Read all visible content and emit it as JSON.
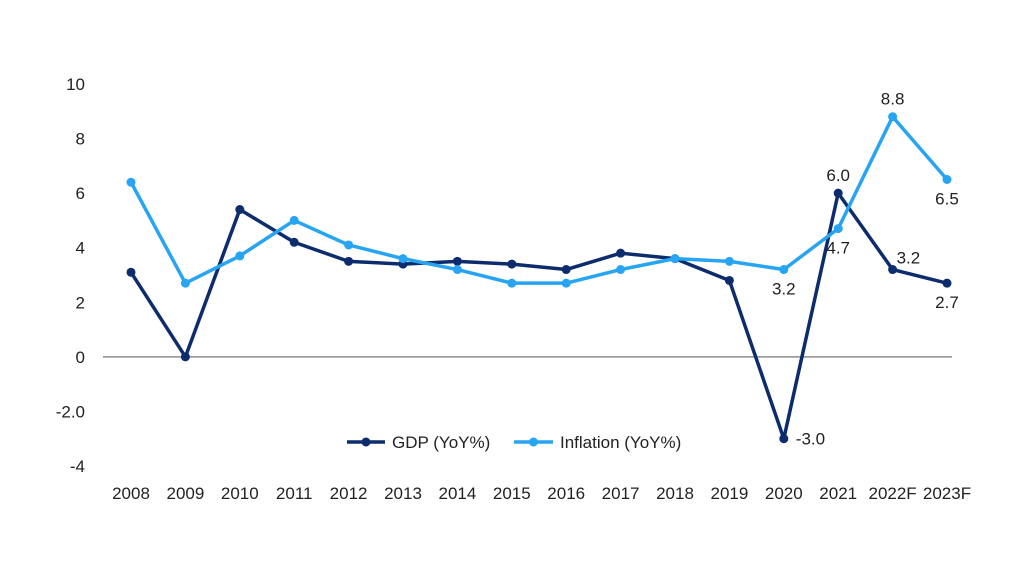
{
  "chart_data": {
    "type": "line",
    "title": "",
    "xlabel": "",
    "ylabel": "",
    "categories": [
      "2008",
      "2009",
      "2010",
      "2011",
      "2012",
      "2013",
      "2014",
      "2015",
      "2016",
      "2017",
      "2018",
      "2019",
      "2020",
      "2021",
      "2022F",
      "2023F"
    ],
    "ylim": [
      -4,
      10
    ],
    "yticks": [
      -4,
      -2,
      0,
      2,
      4,
      6,
      8,
      10
    ],
    "ytick_labels": [
      "-4",
      "-2.0",
      "0",
      "2",
      "4",
      "6",
      "8",
      "10"
    ],
    "grid": false,
    "zero_line": true,
    "legend_position": "bottom-center",
    "series": [
      {
        "name": "GDP (YoY%)",
        "color": "#0d2c6e",
        "values": [
          3.1,
          0.0,
          5.4,
          4.2,
          3.5,
          3.4,
          3.5,
          3.4,
          3.2,
          3.8,
          3.6,
          2.8,
          -3.0,
          6.0,
          3.2,
          2.7
        ]
      },
      {
        "name": "Inflation (YoY%)",
        "color": "#27a4f2",
        "values": [
          6.4,
          2.7,
          3.7,
          5.0,
          4.1,
          3.6,
          3.2,
          2.7,
          2.7,
          3.2,
          3.6,
          3.5,
          3.2,
          4.7,
          8.8,
          6.5
        ]
      }
    ],
    "annotations": [
      {
        "series": 0,
        "category": "2020",
        "text": "-3.0",
        "position": "right"
      },
      {
        "series": 0,
        "category": "2021",
        "text": "6.0",
        "position": "above"
      },
      {
        "series": 0,
        "category": "2022F",
        "text": "3.2",
        "position": "above-right"
      },
      {
        "series": 0,
        "category": "2023F",
        "text": "2.7",
        "position": "below"
      },
      {
        "series": 1,
        "category": "2020",
        "text": "3.2",
        "position": "below"
      },
      {
        "series": 1,
        "category": "2021",
        "text": "4.7",
        "position": "below"
      },
      {
        "series": 1,
        "category": "2022F",
        "text": "8.8",
        "position": "above"
      },
      {
        "series": 1,
        "category": "2023F",
        "text": "6.5",
        "position": "below"
      }
    ],
    "axis_color": "#8c8c8c"
  }
}
